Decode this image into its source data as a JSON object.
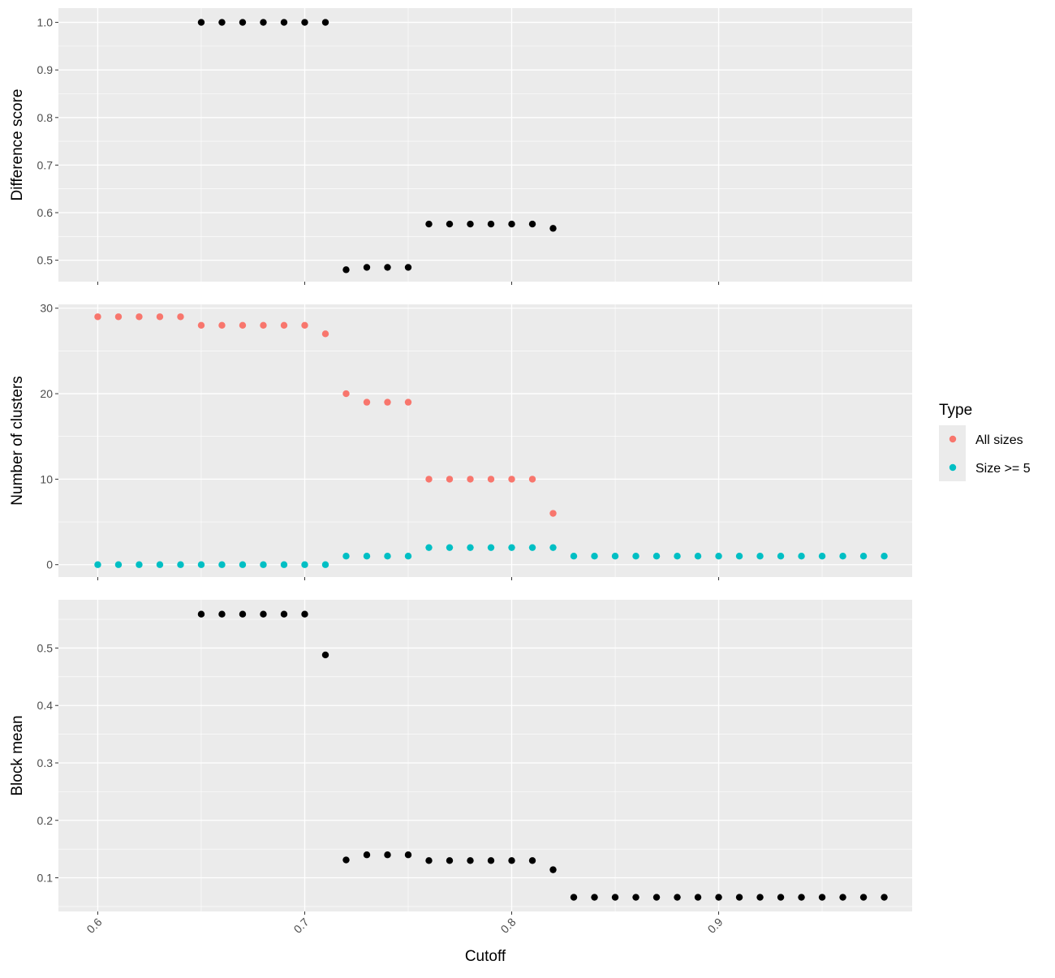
{
  "chart_data": {
    "type": "scatter",
    "xlabel": "Cutoff",
    "xlim": [
      0.581,
      0.9935
    ],
    "x_ticks": [
      0.6,
      0.7,
      0.8,
      0.9
    ],
    "x_tick_labels": [
      "0.6",
      "0.7",
      "0.8",
      "0.9"
    ],
    "grid": true,
    "legend": {
      "title": "Type",
      "placement": "right",
      "entries": [
        {
          "name": "All sizes",
          "color": "#f8766d"
        },
        {
          "name": "Size >= 5",
          "color": "#00bfc4"
        }
      ]
    },
    "panels": [
      {
        "id": "difference-score",
        "ylabel": "Difference score",
        "ylim": [
          0.455,
          1.03
        ],
        "y_ticks": [
          0.5,
          0.6,
          0.7,
          0.8,
          0.9,
          1.0
        ],
        "y_tick_labels": [
          "0.5",
          "0.6",
          "0.7",
          "0.8",
          "0.9",
          "1.0"
        ],
        "series": [
          {
            "color": "#000000",
            "x": [
              0.65,
              0.66,
              0.67,
              0.68,
              0.69,
              0.7,
              0.71,
              0.72,
              0.73,
              0.74,
              0.75,
              0.76,
              0.77,
              0.78,
              0.79,
              0.8,
              0.81,
              0.82
            ],
            "y": [
              1.0,
              1.0,
              1.0,
              1.0,
              1.0,
              1.0,
              1.0,
              0.48,
              0.485,
              0.485,
              0.485,
              0.576,
              0.576,
              0.576,
              0.576,
              0.576,
              0.576,
              0.567
            ]
          }
        ]
      },
      {
        "id": "number-of-clusters",
        "ylabel": "Number of clusters",
        "ylim": [
          -1.45,
          30.45
        ],
        "y_ticks": [
          0,
          10,
          20,
          30
        ],
        "y_tick_labels": [
          "0",
          "10",
          "20",
          "30"
        ],
        "series": [
          {
            "name": "All sizes",
            "color": "#f8766d",
            "x": [
              0.6,
              0.61,
              0.62,
              0.63,
              0.64,
              0.65,
              0.66,
              0.67,
              0.68,
              0.69,
              0.7,
              0.71,
              0.72,
              0.73,
              0.74,
              0.75,
              0.76,
              0.77,
              0.78,
              0.79,
              0.8,
              0.81,
              0.82
            ],
            "y": [
              29,
              29,
              29,
              29,
              29,
              28,
              28,
              28,
              28,
              28,
              28,
              27,
              20,
              19,
              19,
              19,
              10,
              10,
              10,
              10,
              10,
              10,
              6
            ]
          },
          {
            "name": "Size >= 5",
            "color": "#00bfc4",
            "x": [
              0.6,
              0.61,
              0.62,
              0.63,
              0.64,
              0.65,
              0.66,
              0.67,
              0.68,
              0.69,
              0.7,
              0.71,
              0.72,
              0.73,
              0.74,
              0.75,
              0.76,
              0.77,
              0.78,
              0.79,
              0.8,
              0.81,
              0.82,
              0.83,
              0.84,
              0.85,
              0.86,
              0.87,
              0.88,
              0.89,
              0.9,
              0.91,
              0.92,
              0.93,
              0.94,
              0.95,
              0.96,
              0.97,
              0.98
            ],
            "y": [
              0,
              0,
              0,
              0,
              0,
              0,
              0,
              0,
              0,
              0,
              0,
              0,
              1,
              1,
              1,
              1,
              2,
              2,
              2,
              2,
              2,
              2,
              2,
              1,
              1,
              1,
              1,
              1,
              1,
              1,
              1,
              1,
              1,
              1,
              1,
              1,
              1,
              1,
              1
            ]
          }
        ]
      },
      {
        "id": "block-mean",
        "ylabel": "Block mean",
        "ylim": [
          0.0414,
          0.584
        ],
        "y_ticks": [
          0.1,
          0.2,
          0.3,
          0.4,
          0.5
        ],
        "y_tick_labels": [
          "0.1",
          "0.2",
          "0.3",
          "0.4",
          "0.5"
        ],
        "series": [
          {
            "color": "#000000",
            "x": [
              0.65,
              0.66,
              0.67,
              0.68,
              0.69,
              0.7,
              0.71,
              0.72,
              0.73,
              0.74,
              0.75,
              0.76,
              0.77,
              0.78,
              0.79,
              0.8,
              0.81,
              0.82,
              0.83,
              0.84,
              0.85,
              0.86,
              0.87,
              0.88,
              0.89,
              0.9,
              0.91,
              0.92,
              0.93,
              0.94,
              0.95,
              0.96,
              0.97,
              0.98
            ],
            "y": [
              0.559,
              0.559,
              0.559,
              0.559,
              0.559,
              0.559,
              0.488,
              0.131,
              0.14,
              0.14,
              0.14,
              0.13,
              0.13,
              0.13,
              0.13,
              0.13,
              0.13,
              0.114,
              0.066,
              0.066,
              0.066,
              0.066,
              0.066,
              0.066,
              0.066,
              0.066,
              0.066,
              0.066,
              0.066,
              0.066,
              0.066,
              0.066,
              0.066,
              0.066
            ]
          }
        ]
      }
    ]
  }
}
